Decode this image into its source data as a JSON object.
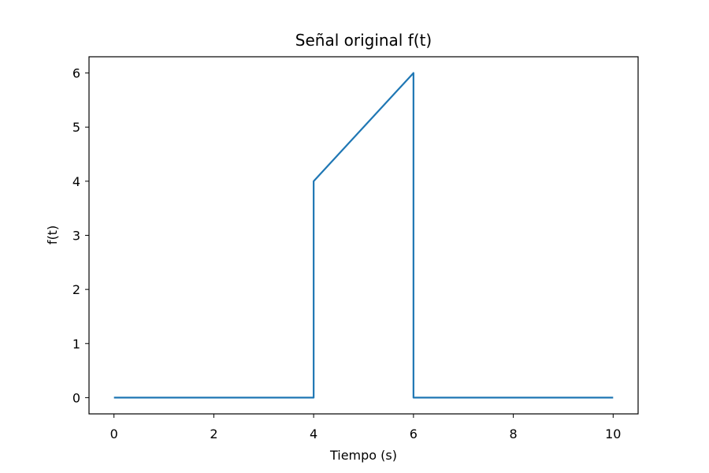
{
  "chart_data": {
    "type": "line",
    "title": "Señal original f(t)",
    "xlabel": "Tiempo (s)",
    "ylabel": "f(t)",
    "xlim": [
      -0.5,
      10.5
    ],
    "ylim": [
      -0.3,
      6.3
    ],
    "xticks": [
      0,
      2,
      4,
      6,
      8,
      10
    ],
    "xtick_labels": [
      "0",
      "2",
      "4",
      "6",
      "8",
      "10"
    ],
    "yticks": [
      0,
      1,
      2,
      3,
      4,
      5,
      6
    ],
    "ytick_labels": [
      "0",
      "1",
      "2",
      "3",
      "4",
      "5",
      "6"
    ],
    "grid": false,
    "series": [
      {
        "color": "#1f77b4",
        "x": [
          0,
          4,
          4,
          6,
          6,
          10
        ],
        "y": [
          0,
          0,
          4,
          6,
          0,
          0
        ]
      }
    ]
  }
}
